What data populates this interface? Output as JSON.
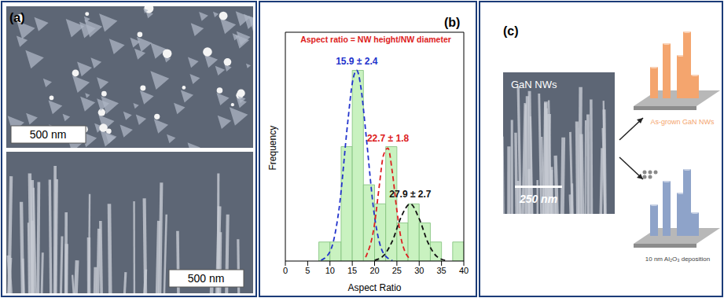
{
  "chart_data": {
    "type": "histogram",
    "title": "Aspect ratio = NW height/NW diameter",
    "x_label": "Aspect Ratio",
    "y_label": "Frequency",
    "bins": [
      0,
      2.5,
      5,
      7.5,
      10,
      12.5,
      15,
      17.5,
      20,
      22.5,
      25,
      27.5,
      30,
      32.5,
      35,
      37.5,
      40
    ],
    "counts": [
      0,
      0,
      0,
      1,
      1,
      6,
      10,
      4,
      3,
      6,
      2,
      3,
      2,
      1,
      0,
      1
    ],
    "color": "#c9f2c0",
    "xlim": [
      0,
      40
    ],
    "xticks": [
      0,
      5,
      10,
      15,
      20,
      25,
      30,
      35,
      40
    ],
    "ylim": [
      0,
      12
    ],
    "tick_labels": "x",
    "series": [
      {
        "label": "15.9 ± 2.4",
        "color": "#2233cc",
        "line_style": "dashed",
        "x": [
          8,
          10,
          12,
          14,
          15,
          16,
          17,
          18,
          20,
          22,
          24
        ],
        "values": [
          0.04,
          0.49,
          2.67,
          7.31,
          9.32,
          10,
          9.0,
          6.82,
          2.33,
          0.4,
          0.03
        ]
      },
      {
        "label": "22.7 ± 1.8",
        "color": "#dd2020",
        "line_style": "dashed",
        "x": [
          18,
          20,
          21,
          22,
          23,
          24,
          25,
          26,
          28
        ],
        "values": [
          0.2,
          1.95,
          3.84,
          5.56,
          5.92,
          4.62,
          2.65,
          1.12,
          0.08
        ]
      },
      {
        "label": "27.9 ± 2.7",
        "color": "#111111",
        "line_style": "dashed",
        "x": [
          20,
          22,
          24,
          26,
          28,
          30,
          32,
          34,
          36
        ],
        "values": [
          0.04,
          0.28,
          1.06,
          2.34,
          3.0,
          2.22,
          0.95,
          0.23,
          0.03
        ]
      }
    ]
  },
  "panels": {
    "a": {
      "label": "(a)",
      "scale_bars": [
        "500 nm",
        "500 nm"
      ]
    },
    "b": {
      "label": "(b)"
    },
    "c": {
      "label": "(c)",
      "image_label": "GaN NWs",
      "scale_bar": "250 nm",
      "schematics": [
        {
          "label": "As-grown GaN NWs",
          "color": "#f4a56e"
        },
        {
          "label": "10 nm Al₂O₃ deposition",
          "color": "#8ea3c9"
        }
      ]
    }
  }
}
